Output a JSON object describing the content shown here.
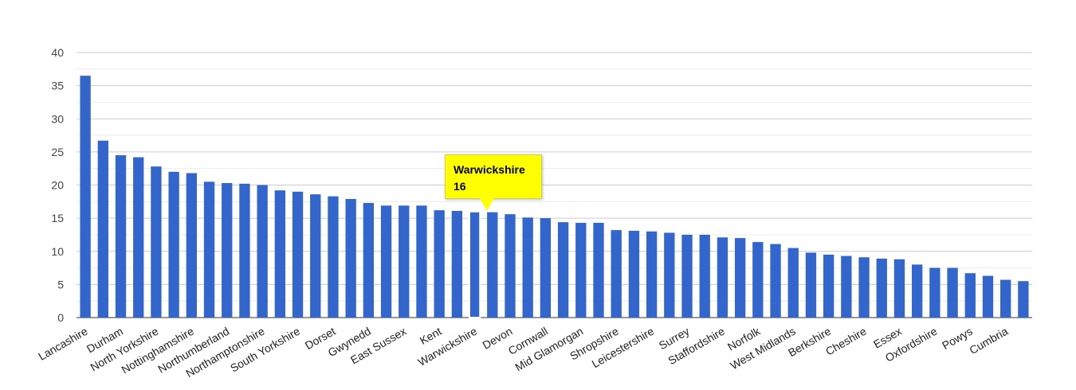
{
  "chart_data": {
    "type": "bar",
    "ylim": [
      0,
      40
    ],
    "yticks": [
      0,
      5,
      10,
      15,
      20,
      25,
      30,
      35,
      40
    ],
    "grid": true,
    "bar_color": "#3366cc",
    "highlight_color": "#ffffff",
    "categories": [
      "Lancashire",
      "",
      "Durham",
      "",
      "North Yorkshire",
      "",
      "Nottinghamshire",
      "",
      "Northumberland",
      "",
      "Northamptonshire",
      "",
      "South Yorkshire",
      "",
      "Dorset",
      "",
      "Gwynedd",
      "",
      "East Sussex",
      "",
      "Kent",
      "",
      "Warwickshire",
      "",
      "Devon",
      "",
      "Cornwall",
      "",
      "Mid Glamorgan",
      "",
      "Shropshire",
      "",
      "Leicestershire",
      "",
      "Surrey",
      "",
      "Staffordshire",
      "",
      "Norfolk",
      "",
      "West Midlands",
      "",
      "Berkshire",
      "",
      "Cheshire",
      "",
      "Essex",
      "",
      "Oxfordshire",
      "",
      "Powys",
      "",
      "Cumbria",
      ""
    ],
    "values": [
      36.5,
      26.7,
      24.5,
      24.2,
      22.8,
      22.0,
      21.8,
      20.5,
      20.3,
      20.2,
      20.0,
      19.2,
      19.0,
      18.6,
      18.3,
      17.9,
      17.3,
      16.9,
      16.9,
      16.9,
      16.2,
      16.1,
      16.0,
      15.9,
      15.6,
      15.1,
      15.0,
      14.4,
      14.3,
      14.3,
      13.2,
      13.1,
      13.0,
      12.8,
      12.5,
      12.5,
      12.1,
      12.0,
      11.4,
      11.1,
      10.5,
      9.8,
      9.5,
      9.3,
      9.1,
      8.9,
      8.8,
      8.0,
      7.5,
      7.5,
      6.7,
      6.3,
      5.7,
      5.5
    ],
    "highlight_index": 22
  },
  "tooltip": {
    "name": "Warwickshire",
    "value": "16"
  }
}
